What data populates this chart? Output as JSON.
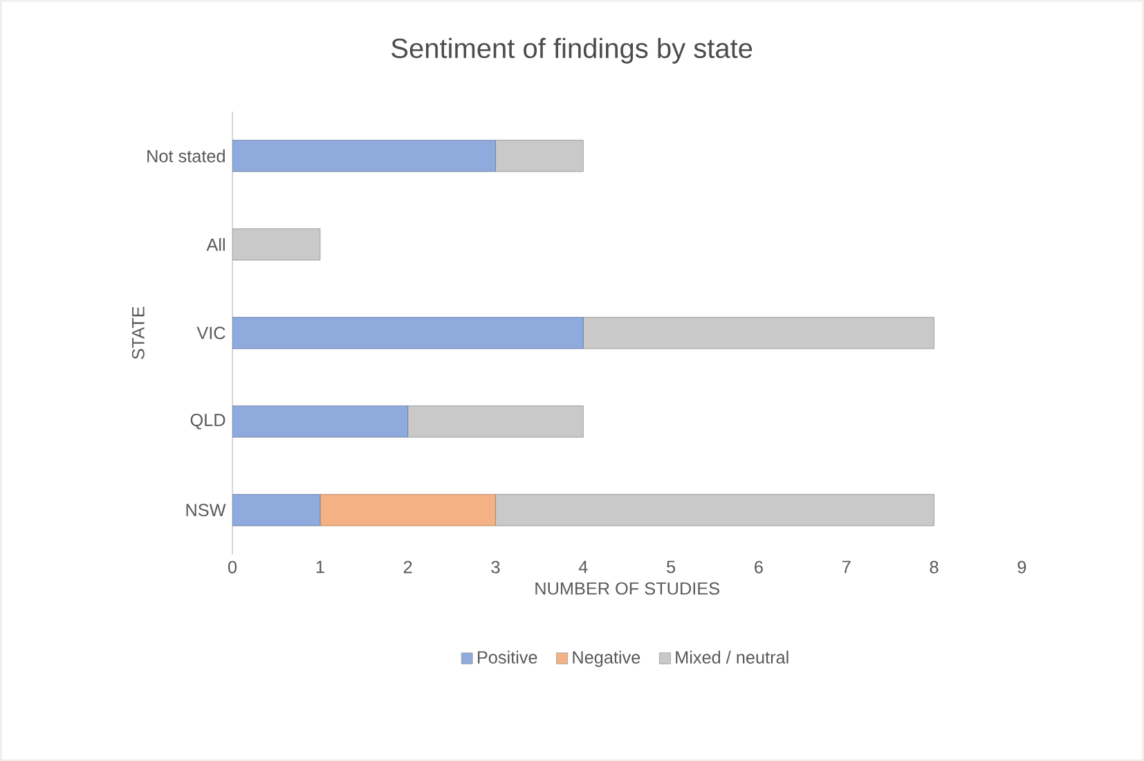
{
  "chart_data": {
    "type": "bar",
    "orientation": "horizontal",
    "stacked": true,
    "title": "Sentiment of findings by state",
    "xlabel": "NUMBER OF STUDIES",
    "ylabel": "STATE",
    "categories": [
      "Not stated",
      "All",
      "VIC",
      "QLD",
      "NSW"
    ],
    "series": [
      {
        "name": "Positive",
        "color": "#8faadc",
        "values": [
          3,
          0,
          4,
          2,
          1
        ]
      },
      {
        "name": "Negative",
        "color": "#f4b183",
        "values": [
          0,
          0,
          0,
          0,
          2
        ]
      },
      {
        "name": "Mixed / neutral",
        "color": "#c9c9c9",
        "values": [
          1,
          1,
          4,
          2,
          5
        ]
      }
    ],
    "xlim": [
      0,
      9
    ],
    "xticks": [
      0,
      1,
      2,
      3,
      4,
      5,
      6,
      7,
      8,
      9
    ],
    "legend": "bottom",
    "grid": false
  }
}
